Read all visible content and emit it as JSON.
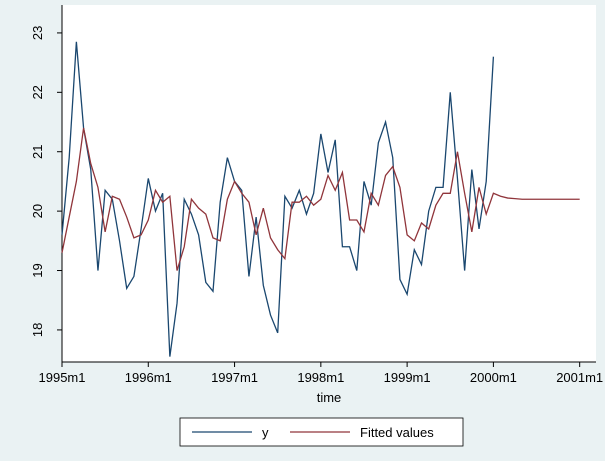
{
  "chart_data": {
    "type": "line",
    "x_label": "time",
    "x": [
      "1995m1",
      "1995m2",
      "1995m3",
      "1995m4",
      "1995m5",
      "1995m6",
      "1995m7",
      "1995m8",
      "1995m9",
      "1995m10",
      "1995m11",
      "1995m12",
      "1996m1",
      "1996m2",
      "1996m3",
      "1996m4",
      "1996m5",
      "1996m6",
      "1996m7",
      "1996m8",
      "1996m9",
      "1996m10",
      "1996m11",
      "1996m12",
      "1997m1",
      "1997m2",
      "1997m3",
      "1997m4",
      "1997m5",
      "1997m6",
      "1997m7",
      "1997m8",
      "1997m9",
      "1997m10",
      "1997m11",
      "1997m12",
      "1998m1",
      "1998m2",
      "1998m3",
      "1998m4",
      "1998m5",
      "1998m6",
      "1998m7",
      "1998m8",
      "1998m9",
      "1998m10",
      "1998m11",
      "1998m12",
      "1999m1",
      "1999m2",
      "1999m3",
      "1999m4",
      "1999m5",
      "1999m6",
      "1999m7",
      "1999m8",
      "1999m9",
      "1999m10",
      "1999m11",
      "1999m12",
      "2000m1",
      "2000m2",
      "2000m3",
      "2000m4",
      "2000m5",
      "2000m6",
      "2000m7",
      "2000m8",
      "2000m9",
      "2000m10",
      "2000m11",
      "2000m12",
      "2001m1"
    ],
    "series": [
      {
        "name": "y",
        "color": "#1a476f",
        "values": [
          19.6,
          20.9,
          22.85,
          21.4,
          20.7,
          19.0,
          20.35,
          20.2,
          19.5,
          18.7,
          18.9,
          19.7,
          20.55,
          20.0,
          20.3,
          17.55,
          18.45,
          20.2,
          19.95,
          19.6,
          18.8,
          18.65,
          20.15,
          20.9,
          20.5,
          20.35,
          18.9,
          19.9,
          18.75,
          18.25,
          17.95,
          20.25,
          20.05,
          20.35,
          19.95,
          20.3,
          21.3,
          20.65,
          21.2,
          19.4,
          19.4,
          19.0,
          20.5,
          20.1,
          21.15,
          21.5,
          20.9,
          18.85,
          18.6,
          19.35,
          19.1,
          20.0,
          20.4,
          20.4,
          22.0,
          20.55,
          19.0,
          20.7,
          19.7,
          20.5,
          22.6,
          null,
          null,
          null,
          null,
          null,
          null,
          null,
          null,
          null,
          null,
          null,
          null
        ]
      },
      {
        "name": "Fitted values",
        "color": "#90353b",
        "values": [
          19.3,
          19.9,
          20.5,
          21.4,
          20.8,
          20.4,
          19.65,
          20.25,
          20.2,
          19.9,
          19.55,
          19.6,
          19.85,
          20.35,
          20.15,
          20.25,
          19.0,
          19.4,
          20.2,
          20.05,
          19.95,
          19.55,
          19.5,
          20.2,
          20.5,
          20.3,
          20.15,
          19.6,
          20.05,
          19.55,
          19.35,
          19.2,
          20.15,
          20.15,
          20.25,
          20.1,
          20.2,
          20.6,
          20.35,
          20.65,
          19.85,
          19.85,
          19.65,
          20.3,
          20.1,
          20.6,
          20.75,
          20.4,
          19.6,
          19.5,
          19.8,
          19.7,
          20.1,
          20.3,
          20.3,
          21.0,
          20.3,
          19.65,
          20.4,
          19.95,
          20.3,
          20.25,
          20.22,
          20.21,
          20.2,
          20.2,
          20.2,
          20.2,
          20.2,
          20.2,
          20.2,
          20.2,
          20.2
        ]
      }
    ],
    "xticks": [
      "1995m1",
      "1996m1",
      "1997m1",
      "1998m1",
      "1999m1",
      "2000m1",
      "2001m1"
    ],
    "ylim": [
      17.46,
      23.47
    ],
    "yticks": [
      18,
      19,
      20,
      21,
      22,
      23
    ],
    "grid": false
  }
}
